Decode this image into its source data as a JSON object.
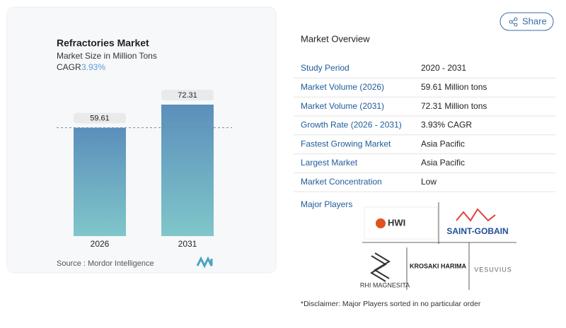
{
  "chart_data": {
    "type": "bar",
    "title": "Refractories Market",
    "subtitle": "Market Size in Million Tons",
    "cagr_label": "CAGR",
    "cagr_value": "3.93%",
    "categories": [
      "2026",
      "2031"
    ],
    "values": [
      59.61,
      72.31
    ],
    "source": "Source :  Mordor Intelligence"
  },
  "share": "Share",
  "overview": {
    "title": "Market Overview",
    "rows": [
      [
        "Study Period",
        "2020 - 2031"
      ],
      [
        "Market Volume (2026)",
        "59.61 Million tons"
      ],
      [
        "Market Volume (2031)",
        "72.31 Million tons"
      ],
      [
        "Growth Rate (2026 - 2031)",
        "3.93% CAGR"
      ],
      [
        "Fastest Growing Market",
        "Asia Pacific"
      ],
      [
        "Largest Market",
        "Asia Pacific"
      ],
      [
        "Market Concentration",
        "Low"
      ]
    ],
    "players_title": "Major Players",
    "players": [
      "HWI",
      "SAINT-GOBAIN",
      "RHI MAGNESITA",
      "KROSAKI HARIMA",
      "VESUVIUS"
    ],
    "disclaimer": "*Disclaimer: Major Players sorted in no particular order"
  }
}
